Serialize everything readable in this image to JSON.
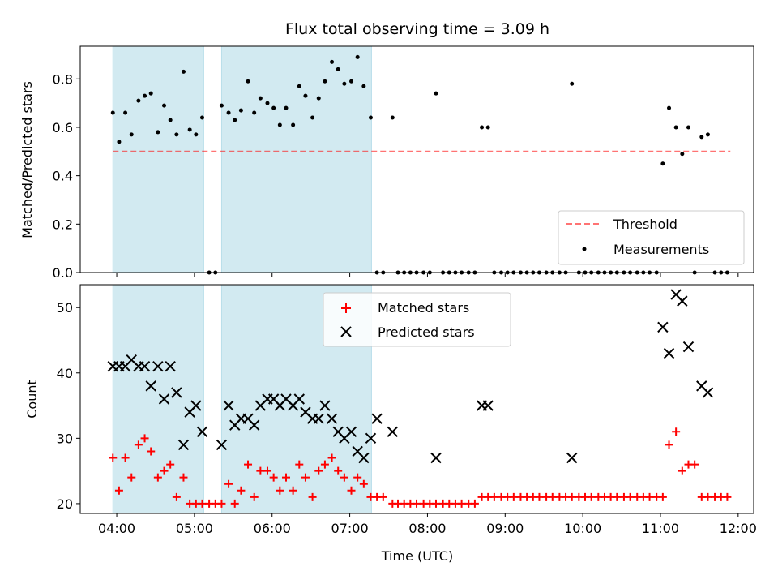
{
  "chart_data": {
    "title": "Flux total observing time = 3.09 h",
    "xlabel": "Time (UTC)",
    "x_units": "hours (UTC)",
    "xlim": [
      3.53,
      12.2
    ],
    "x_ticks": [
      {
        "v": 4,
        "label": "04:00"
      },
      {
        "v": 5,
        "label": "05:00"
      },
      {
        "v": 6,
        "label": "06:00"
      },
      {
        "v": 7,
        "label": "07:00"
      },
      {
        "v": 8,
        "label": "08:00"
      },
      {
        "v": 9,
        "label": "09:00"
      },
      {
        "v": 10,
        "label": "10:00"
      },
      {
        "v": 11,
        "label": "11:00"
      },
      {
        "v": 12,
        "label": "12:00"
      }
    ],
    "shaded_intervals": [
      [
        3.95,
        5.12
      ],
      [
        5.35,
        7.28
      ]
    ],
    "shade_color": "#add8e6",
    "top": {
      "type": "scatter",
      "ylabel": "Matched/Predicted stars",
      "ylim": [
        0,
        0.935
      ],
      "y_ticks": [
        {
          "v": 0,
          "label": "0.0"
        },
        {
          "v": 0.2,
          "label": "0.2"
        },
        {
          "v": 0.4,
          "label": "0.4"
        },
        {
          "v": 0.6,
          "label": "0.6"
        },
        {
          "v": 0.8,
          "label": "0.8"
        }
      ],
      "threshold": {
        "name": "Threshold",
        "value": 0.5,
        "x_range": [
          3.95,
          11.9
        ],
        "color": "#ff0000"
      },
      "measurements": {
        "name": "Measurements",
        "color": "#000000",
        "points": [
          [
            3.95,
            0.66
          ],
          [
            4.03,
            0.54
          ],
          [
            4.11,
            0.66
          ],
          [
            4.19,
            0.57
          ],
          [
            4.28,
            0.71
          ],
          [
            4.36,
            0.73
          ],
          [
            4.44,
            0.74
          ],
          [
            4.53,
            0.58
          ],
          [
            4.61,
            0.69
          ],
          [
            4.69,
            0.63
          ],
          [
            4.77,
            0.57
          ],
          [
            4.86,
            0.83
          ],
          [
            4.94,
            0.59
          ],
          [
            5.02,
            0.57
          ],
          [
            5.1,
            0.64
          ],
          [
            5.19,
            0.0
          ],
          [
            5.27,
            0.0
          ],
          [
            5.35,
            0.69
          ],
          [
            5.44,
            0.66
          ],
          [
            5.52,
            0.63
          ],
          [
            5.6,
            0.67
          ],
          [
            5.69,
            0.79
          ],
          [
            5.77,
            0.66
          ],
          [
            5.85,
            0.72
          ],
          [
            5.94,
            0.7
          ],
          [
            6.02,
            0.68
          ],
          [
            6.1,
            0.61
          ],
          [
            6.18,
            0.68
          ],
          [
            6.27,
            0.61
          ],
          [
            6.35,
            0.77
          ],
          [
            6.43,
            0.73
          ],
          [
            6.52,
            0.64
          ],
          [
            6.6,
            0.72
          ],
          [
            6.68,
            0.79
          ],
          [
            6.77,
            0.87
          ],
          [
            6.85,
            0.84
          ],
          [
            6.93,
            0.78
          ],
          [
            7.02,
            0.79
          ],
          [
            7.1,
            0.89
          ],
          [
            7.18,
            0.77
          ],
          [
            7.27,
            0.64
          ],
          [
            7.35,
            0.0
          ],
          [
            7.43,
            0.0
          ],
          [
            7.55,
            0.64
          ],
          [
            7.62,
            0.0
          ],
          [
            7.7,
            0.0
          ],
          [
            7.78,
            0.0
          ],
          [
            7.86,
            0.0
          ],
          [
            7.95,
            0.0
          ],
          [
            8.03,
            0.0
          ],
          [
            8.11,
            0.74
          ],
          [
            8.2,
            0.0
          ],
          [
            8.28,
            0.0
          ],
          [
            8.36,
            0.0
          ],
          [
            8.44,
            0.0
          ],
          [
            8.53,
            0.0
          ],
          [
            8.61,
            0.0
          ],
          [
            8.7,
            0.6
          ],
          [
            8.78,
            0.6
          ],
          [
            8.86,
            0.0
          ],
          [
            8.95,
            0.0
          ],
          [
            9.03,
            0.0
          ],
          [
            9.11,
            0.0
          ],
          [
            9.2,
            0.0
          ],
          [
            9.28,
            0.0
          ],
          [
            9.36,
            0.0
          ],
          [
            9.44,
            0.0
          ],
          [
            9.53,
            0.0
          ],
          [
            9.61,
            0.0
          ],
          [
            9.7,
            0.0
          ],
          [
            9.78,
            0.0
          ],
          [
            9.86,
            0.78
          ],
          [
            9.95,
            0.0
          ],
          [
            10.03,
            0.0
          ],
          [
            10.11,
            0.0
          ],
          [
            10.2,
            0.0
          ],
          [
            10.28,
            0.0
          ],
          [
            10.36,
            0.0
          ],
          [
            10.44,
            0.0
          ],
          [
            10.53,
            0.0
          ],
          [
            10.61,
            0.0
          ],
          [
            10.7,
            0.0
          ],
          [
            10.78,
            0.0
          ],
          [
            10.86,
            0.0
          ],
          [
            10.95,
            0.0
          ],
          [
            11.03,
            0.45
          ],
          [
            11.11,
            0.68
          ],
          [
            11.2,
            0.6
          ],
          [
            11.28,
            0.49
          ],
          [
            11.36,
            0.6
          ],
          [
            11.44,
            0.0
          ],
          [
            11.53,
            0.56
          ],
          [
            11.61,
            0.57
          ],
          [
            11.7,
            0.0
          ],
          [
            11.78,
            0.0
          ],
          [
            11.86,
            0.0
          ]
        ]
      },
      "legend": {
        "location": "lower right",
        "entries": [
          "Threshold",
          "Measurements"
        ]
      }
    },
    "bottom": {
      "type": "scatter",
      "ylabel": "Count",
      "ylim": [
        18.5,
        53.5
      ],
      "y_ticks": [
        {
          "v": 20,
          "label": "20"
        },
        {
          "v": 30,
          "label": "30"
        },
        {
          "v": 40,
          "label": "40"
        },
        {
          "v": 50,
          "label": "50"
        }
      ],
      "series": [
        {
          "name": "Matched stars",
          "marker": "+",
          "color": "#ff0000",
          "points": [
            [
              3.95,
              27
            ],
            [
              4.03,
              22
            ],
            [
              4.11,
              27
            ],
            [
              4.19,
              24
            ],
            [
              4.28,
              29
            ],
            [
              4.36,
              30
            ],
            [
              4.44,
              28
            ],
            [
              4.53,
              24
            ],
            [
              4.61,
              25
            ],
            [
              4.69,
              26
            ],
            [
              4.77,
              21
            ],
            [
              4.86,
              24
            ],
            [
              4.94,
              20
            ],
            [
              5.02,
              20
            ],
            [
              5.1,
              20
            ],
            [
              5.19,
              20
            ],
            [
              5.27,
              20
            ],
            [
              5.35,
              20
            ],
            [
              5.44,
              23
            ],
            [
              5.52,
              20
            ],
            [
              5.6,
              22
            ],
            [
              5.69,
              26
            ],
            [
              5.77,
              21
            ],
            [
              5.85,
              25
            ],
            [
              5.94,
              25
            ],
            [
              6.02,
              24
            ],
            [
              6.1,
              22
            ],
            [
              6.18,
              24
            ],
            [
              6.27,
              22
            ],
            [
              6.35,
              26
            ],
            [
              6.43,
              24
            ],
            [
              6.52,
              21
            ],
            [
              6.6,
              25
            ],
            [
              6.68,
              26
            ],
            [
              6.77,
              27
            ],
            [
              6.85,
              25
            ],
            [
              6.93,
              24
            ],
            [
              7.02,
              22
            ],
            [
              7.1,
              24
            ],
            [
              7.18,
              23
            ],
            [
              7.27,
              21
            ],
            [
              7.35,
              21
            ],
            [
              7.43,
              21
            ],
            [
              7.55,
              20
            ],
            [
              7.62,
              20
            ],
            [
              7.7,
              20
            ],
            [
              7.78,
              20
            ],
            [
              7.86,
              20
            ],
            [
              7.95,
              20
            ],
            [
              8.03,
              20
            ],
            [
              8.11,
              20
            ],
            [
              8.2,
              20
            ],
            [
              8.28,
              20
            ],
            [
              8.36,
              20
            ],
            [
              8.44,
              20
            ],
            [
              8.53,
              20
            ],
            [
              8.61,
              20
            ],
            [
              8.7,
              21
            ],
            [
              8.78,
              21
            ],
            [
              8.86,
              21
            ],
            [
              8.95,
              21
            ],
            [
              9.03,
              21
            ],
            [
              9.11,
              21
            ],
            [
              9.2,
              21
            ],
            [
              9.28,
              21
            ],
            [
              9.36,
              21
            ],
            [
              9.44,
              21
            ],
            [
              9.53,
              21
            ],
            [
              9.61,
              21
            ],
            [
              9.7,
              21
            ],
            [
              9.78,
              21
            ],
            [
              9.86,
              21
            ],
            [
              9.95,
              21
            ],
            [
              10.03,
              21
            ],
            [
              10.11,
              21
            ],
            [
              10.2,
              21
            ],
            [
              10.28,
              21
            ],
            [
              10.36,
              21
            ],
            [
              10.44,
              21
            ],
            [
              10.53,
              21
            ],
            [
              10.61,
              21
            ],
            [
              10.7,
              21
            ],
            [
              10.78,
              21
            ],
            [
              10.86,
              21
            ],
            [
              10.95,
              21
            ],
            [
              11.03,
              21
            ],
            [
              11.11,
              29
            ],
            [
              11.2,
              31
            ],
            [
              11.28,
              25
            ],
            [
              11.36,
              26
            ],
            [
              11.44,
              26
            ],
            [
              11.53,
              21
            ],
            [
              11.61,
              21
            ],
            [
              11.7,
              21
            ],
            [
              11.78,
              21
            ],
            [
              11.86,
              21
            ]
          ]
        },
        {
          "name": "Predicted stars",
          "marker": "x",
          "color": "#000000",
          "points": [
            [
              3.95,
              41
            ],
            [
              4.03,
              41
            ],
            [
              4.11,
              41
            ],
            [
              4.19,
              42
            ],
            [
              4.28,
              41
            ],
            [
              4.36,
              41
            ],
            [
              4.44,
              38
            ],
            [
              4.53,
              41
            ],
            [
              4.61,
              36
            ],
            [
              4.69,
              41
            ],
            [
              4.77,
              37
            ],
            [
              4.86,
              29
            ],
            [
              4.94,
              34
            ],
            [
              5.02,
              35
            ],
            [
              5.1,
              31
            ],
            [
              5.35,
              29
            ],
            [
              5.44,
              35
            ],
            [
              5.52,
              32
            ],
            [
              5.6,
              33
            ],
            [
              5.69,
              33
            ],
            [
              5.77,
              32
            ],
            [
              5.85,
              35
            ],
            [
              5.94,
              36
            ],
            [
              6.02,
              36
            ],
            [
              6.1,
              35
            ],
            [
              6.18,
              36
            ],
            [
              6.27,
              35
            ],
            [
              6.35,
              36
            ],
            [
              6.43,
              34
            ],
            [
              6.52,
              33
            ],
            [
              6.6,
              33
            ],
            [
              6.68,
              35
            ],
            [
              6.77,
              33
            ],
            [
              6.85,
              31
            ],
            [
              6.93,
              30
            ],
            [
              7.02,
              31
            ],
            [
              7.1,
              28
            ],
            [
              7.18,
              27
            ],
            [
              7.27,
              30
            ],
            [
              7.35,
              33
            ],
            [
              7.55,
              31
            ],
            [
              8.11,
              27
            ],
            [
              8.7,
              35
            ],
            [
              8.78,
              35
            ],
            [
              9.86,
              27
            ],
            [
              11.03,
              47
            ],
            [
              11.11,
              43
            ],
            [
              11.2,
              52
            ],
            [
              11.28,
              51
            ],
            [
              11.36,
              44
            ],
            [
              11.53,
              38
            ],
            [
              11.61,
              37
            ]
          ]
        }
      ],
      "legend": {
        "location": "upper center",
        "entries": [
          "Matched stars",
          "Predicted stars"
        ]
      }
    }
  }
}
